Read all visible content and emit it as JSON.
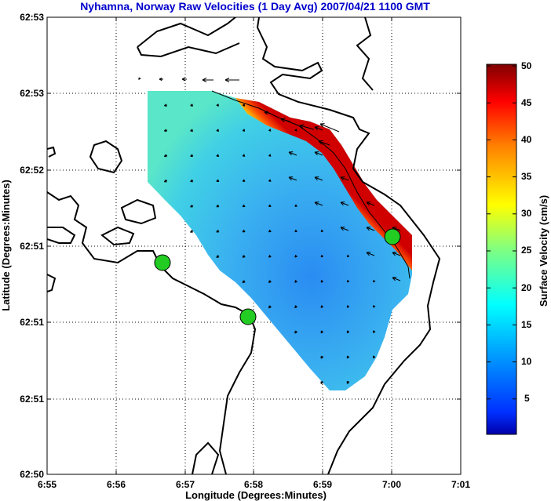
{
  "chart_data": {
    "type": "heatmap",
    "title": "Nyhamna, Norway Raw Velocities (1 Day Avg) 2007/04/21 1100 GMT",
    "xlabel": "Longitude (Degrees:Minutes)",
    "ylabel": "Latitude (Degrees:Minutes)",
    "x_ticks": [
      "6:55",
      "6:56",
      "6:57",
      "6:58",
      "6:59",
      "7:00",
      "7:01"
    ],
    "y_ticks": [
      "62:53",
      "62:53",
      "62:52",
      "62:51",
      "62:51",
      "62:51",
      "62:50"
    ],
    "xlim": [
      6.9167,
      7.0167
    ],
    "grid": true,
    "colorbar": {
      "label": "Surface Velocity (cm/s)",
      "ticks": [
        "50",
        "45",
        "40",
        "35",
        "30",
        "25",
        "20",
        "15",
        "10",
        "5"
      ],
      "range": [
        0,
        50
      ],
      "colormap": "jet"
    },
    "sites": [
      {
        "lon": 6.9445,
        "color": "#22cc22"
      },
      {
        "lon": 6.9655,
        "color": "#22cc22"
      },
      {
        "lon": 7.0003,
        "color": "#22cc22"
      }
    ],
    "arrow_style": "black arrows, length proportional to speed",
    "max_speed_cm_s": 45,
    "min_speed_cm_s": 2
  }
}
